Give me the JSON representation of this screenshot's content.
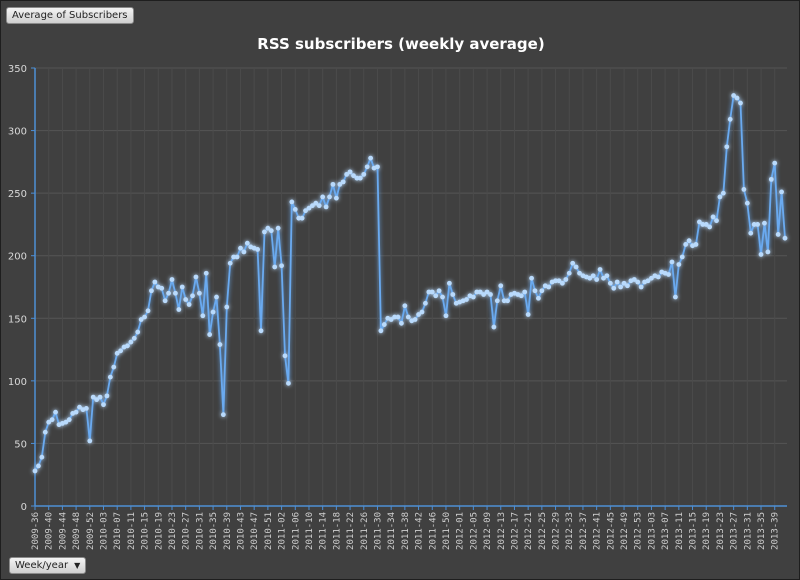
{
  "controls": {
    "field_button": "Average of Subscribers",
    "axis_button": "Week/year"
  },
  "colors": {
    "background": "#404040",
    "line": "#6aaaf0",
    "grid": "#555555",
    "axis": "#4d8fd6"
  },
  "chart_data": {
    "type": "line",
    "title": "RSS subscribers (weekly average)",
    "xlabel": "Week/year",
    "ylabel": "Average of Subscribers",
    "ylim": [
      0,
      350
    ],
    "yticks": [
      0,
      50,
      100,
      150,
      200,
      250,
      300,
      350
    ],
    "grid": true,
    "tick_every": 4,
    "x_tick_labels": [
      "2009-36",
      "2009-40",
      "2009-44",
      "2009-48",
      "2009-52",
      "2010-03",
      "2010-07",
      "2010-11",
      "2010-15",
      "2010-19",
      "2010-23",
      "2010-27",
      "2010-31",
      "2010-35",
      "2010-39",
      "2010-43",
      "2010-47",
      "2010-51",
      "2011-02",
      "2011-06",
      "2011-10",
      "2011-14",
      "2011-18",
      "2011-22",
      "2011-26",
      "2011-30",
      "2011-34",
      "2011-38",
      "2011-42",
      "2011-46",
      "2011-50",
      "2012-01",
      "2012-05",
      "2012-09",
      "2012-13",
      "2012-17",
      "2012-21",
      "2012-25",
      "2012-29",
      "2012-33",
      "2012-37",
      "2012-41",
      "2012-45",
      "2012-49",
      "2012-53",
      "2013-03",
      "2013-07",
      "2013-11",
      "2013-15",
      "2013-19",
      "2013-23",
      "2013-27",
      "2013-31",
      "2013-35",
      "2013-39"
    ],
    "series": [
      {
        "name": "Average of Subscribers",
        "values": [
          28,
          32,
          39,
          59,
          67,
          69,
          75,
          65,
          66,
          67,
          69,
          74,
          75,
          79,
          77,
          78,
          52,
          87,
          85,
          87,
          81,
          88,
          103,
          111,
          122,
          124,
          127,
          128,
          131,
          134,
          139,
          149,
          151,
          156,
          172,
          179,
          175,
          174,
          164,
          170,
          181,
          170,
          157,
          175,
          165,
          161,
          168,
          183,
          170,
          152,
          186,
          137,
          155,
          167,
          129,
          73,
          159,
          194,
          199,
          199,
          206,
          203,
          210,
          207,
          206,
          205,
          140,
          219,
          222,
          220,
          191,
          222,
          192,
          120,
          98,
          243,
          237,
          230,
          230,
          236,
          238,
          240,
          242,
          240,
          247,
          239,
          247,
          257,
          246,
          257,
          259,
          265,
          267,
          264,
          262,
          262,
          265,
          271,
          278,
          270,
          271,
          140,
          145,
          150,
          149,
          151,
          151,
          146,
          160,
          151,
          148,
          149,
          153,
          155,
          162,
          171,
          171,
          168,
          172,
          167,
          152,
          178,
          169,
          162,
          163,
          164,
          165,
          168,
          167,
          171,
          171,
          169,
          171,
          169,
          143,
          164,
          176,
          164,
          164,
          169,
          170,
          169,
          168,
          171,
          153,
          182,
          172,
          166,
          172,
          176,
          175,
          179,
          180,
          180,
          178,
          181,
          186,
          194,
          191,
          186,
          184,
          183,
          182,
          184,
          181,
          189,
          182,
          184,
          178,
          174,
          179,
          175,
          178,
          176,
          180,
          181,
          179,
          175,
          179,
          180,
          182,
          184,
          183,
          187,
          186,
          185,
          195,
          167,
          193,
          199,
          209,
          212,
          208,
          209,
          227,
          225,
          225,
          223,
          231,
          228,
          247,
          250,
          287,
          309,
          328,
          326,
          322,
          253,
          242,
          218,
          225,
          225,
          201,
          226,
          203,
          261,
          274,
          217,
          251,
          214
        ]
      }
    ]
  }
}
